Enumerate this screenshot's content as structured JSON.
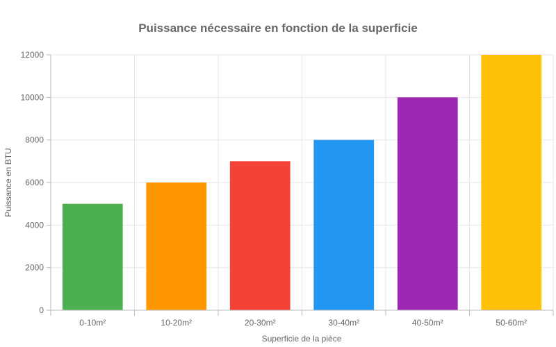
{
  "chart_data": {
    "type": "bar",
    "title": "Puissance nécessaire en fonction de la superficie",
    "xlabel": "Superficie de la pièce",
    "ylabel": "Puissance en BTU",
    "categories": [
      "0-10m²",
      "10-20m²",
      "20-30m²",
      "30-40m²",
      "40-50m²",
      "50-60m²"
    ],
    "values": [
      5000,
      6000,
      7000,
      8000,
      10000,
      12000
    ],
    "colors": [
      "#4CAF50",
      "#FF9800",
      "#F44336",
      "#2196F3",
      "#9C27B0",
      "#FFC107"
    ],
    "ylim": [
      0,
      12000
    ],
    "yticks": [
      0,
      2000,
      4000,
      6000,
      8000,
      10000,
      12000
    ],
    "grid": true,
    "legend": "none"
  }
}
